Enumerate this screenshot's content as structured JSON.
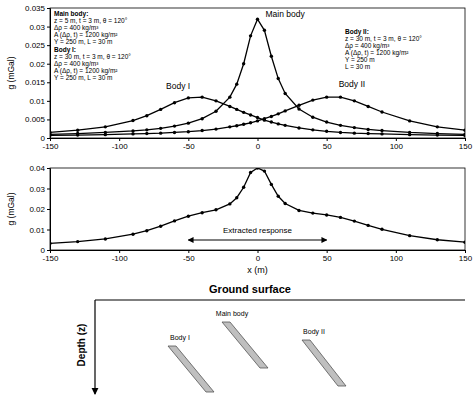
{
  "chart_data": [
    {
      "type": "line",
      "xlim": [
        -150,
        150
      ],
      "xticks": [
        -150,
        -100,
        -50,
        0,
        50,
        100,
        150
      ],
      "ylim": [
        0,
        0.035
      ],
      "yticks": [
        0,
        0.005,
        0.01,
        0.015,
        0.02,
        0.025,
        0.03,
        0.035
      ],
      "ylabel": "g (mGal)",
      "x": [
        -150,
        -130,
        -110,
        -90,
        -80,
        -70,
        -60,
        -50,
        -40,
        -30,
        -20,
        -15,
        -10,
        -5,
        0,
        5,
        10,
        15,
        20,
        30,
        40,
        50,
        60,
        70,
        80,
        90,
        110,
        130,
        150
      ],
      "series": [
        {
          "name": "Main body",
          "color": "#000000",
          "marker": "circle",
          "line_style": "solid",
          "values": [
            0.001,
            0.0012,
            0.0015,
            0.0019,
            0.0022,
            0.0026,
            0.0032,
            0.004,
            0.0052,
            0.0072,
            0.011,
            0.0145,
            0.02,
            0.0275,
            0.032,
            0.029,
            0.022,
            0.016,
            0.012,
            0.0078,
            0.0056,
            0.0043,
            0.0034,
            0.0028,
            0.0023,
            0.002,
            0.0015,
            0.0012,
            0.001
          ]
        },
        {
          "name": "Body I",
          "color": "#000000",
          "marker": "circle",
          "line_style": "solid",
          "values": [
            0.0015,
            0.0021,
            0.003,
            0.0047,
            0.006,
            0.0077,
            0.0095,
            0.0108,
            0.011,
            0.01,
            0.0085,
            0.0077,
            0.0069,
            0.0062,
            0.0055,
            0.0048,
            0.0043,
            0.0038,
            0.0034,
            0.0027,
            0.0022,
            0.0018,
            0.0015,
            0.0013,
            0.0012,
            0.0011,
            0.0009,
            0.0008,
            0.0007
          ]
        },
        {
          "name": "Body II",
          "color": "#000000",
          "marker": "circle",
          "line_style": "solid",
          "values": [
            0.0007,
            0.0008,
            0.0009,
            0.0011,
            0.0012,
            0.0013,
            0.0015,
            0.0017,
            0.002,
            0.0024,
            0.003,
            0.0033,
            0.0037,
            0.0041,
            0.0046,
            0.0052,
            0.0058,
            0.0065,
            0.0073,
            0.0088,
            0.0102,
            0.011,
            0.011,
            0.01,
            0.0085,
            0.007,
            0.0046,
            0.003,
            0.0021
          ]
        }
      ],
      "annotations": [
        {
          "lines": [
            "Main body:",
            "z = 5 m, t = 3 m, θ = 120°",
            "Δρ = 400 kg/m³",
            "A (Δρ, t) = 1200 kg/m²",
            "Y = 250 m, L = 30 m"
          ]
        },
        {
          "lines": [
            "Body I:",
            "z = 30 m, t = 3 m, θ = 120°",
            "Δρ = 400 kg/m³",
            "A (Δρ, t) = 1200 kg/m²",
            "Y = 250 m, L = 30 m"
          ]
        },
        {
          "lines": [
            "Body II:",
            "z = 30 m, t = 3 m, θ = 120°",
            "Δρ = 400 kg/m³",
            "A (Δρ, t) = 1200 kg/m²",
            "Y = 250 m",
            "L = 30 m"
          ]
        }
      ]
    },
    {
      "type": "line",
      "xlim": [
        -150,
        150
      ],
      "xticks": [
        -150,
        -100,
        -50,
        0,
        50,
        100,
        150
      ],
      "ylim": [
        0,
        0.04
      ],
      "yticks": [
        0,
        0.01,
        0.02,
        0.03,
        0.04
      ],
      "xlabel": "x (m)",
      "ylabel": "g (mGal)",
      "x": [
        -150,
        -130,
        -110,
        -90,
        -80,
        -70,
        -60,
        -50,
        -40,
        -30,
        -20,
        -15,
        -10,
        -5,
        0,
        5,
        10,
        15,
        20,
        30,
        40,
        50,
        60,
        70,
        80,
        90,
        110,
        130,
        150
      ],
      "series": [
        {
          "color": "#000000",
          "marker": "circle",
          "line_style": "solid",
          "values": [
            0.0032,
            0.0041,
            0.0054,
            0.0077,
            0.0094,
            0.0116,
            0.0142,
            0.0165,
            0.0182,
            0.0196,
            0.0225,
            0.0255,
            0.0306,
            0.0378,
            0.04,
            0.0385,
            0.032,
            0.0262,
            0.0227,
            0.0193,
            0.018,
            0.0171,
            0.0159,
            0.0141,
            0.012,
            0.0101,
            0.007,
            0.005,
            0.0038
          ]
        }
      ],
      "annotations": [
        {
          "text": "Extracted response",
          "x": [
            -50,
            50
          ]
        }
      ]
    }
  ],
  "diagram": {
    "surface_label": "Ground surface",
    "depth_label": "Depth (z)",
    "bodies": [
      {
        "label": "Main body"
      },
      {
        "label": "Body I"
      },
      {
        "label": "Body II"
      }
    ]
  }
}
